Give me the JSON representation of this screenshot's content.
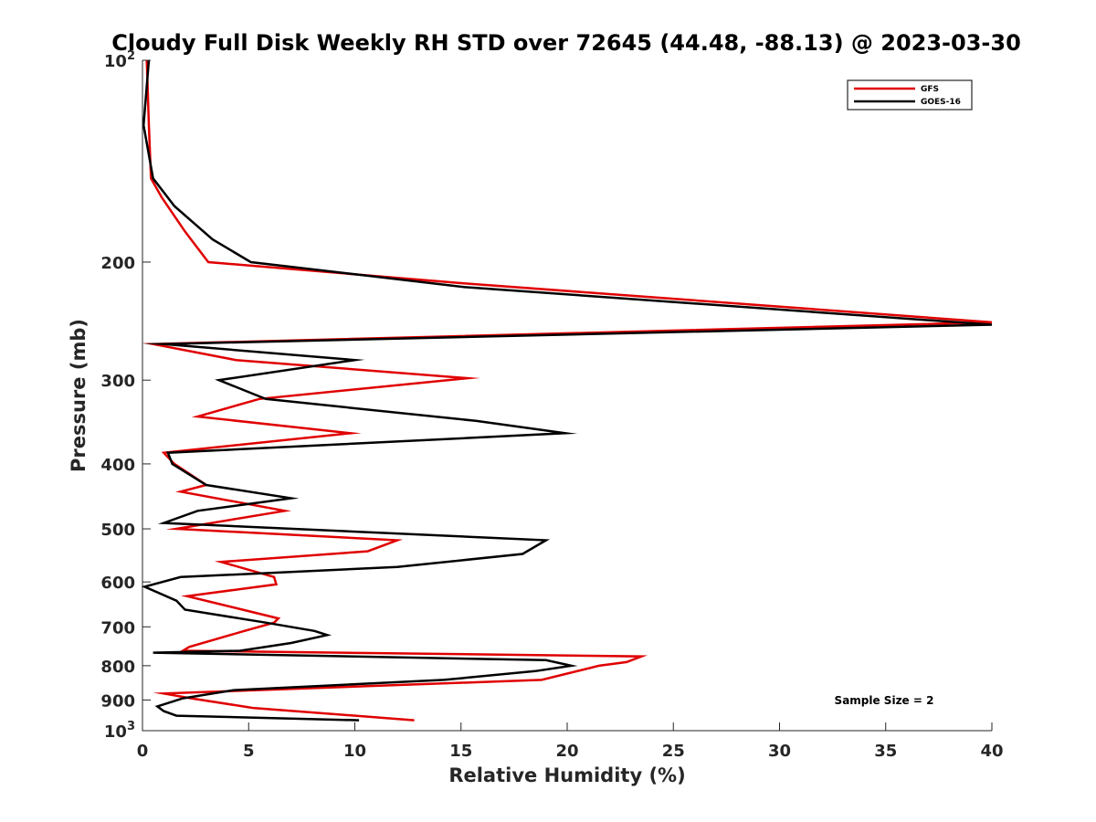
{
  "chart_data": {
    "type": "line",
    "title": "Cloudy Full Disk Weekly RH STD over 72645 (44.48, -88.13) @ 2023-03-30",
    "xlabel": "Relative Humidity (%)",
    "ylabel": "Pressure (mb)",
    "xlim": [
      0,
      40
    ],
    "ylim": [
      100,
      1000
    ],
    "y_scale": "log",
    "y_reversed": true,
    "grid": false,
    "legend_position": "top-right",
    "x_ticks": [
      "0",
      "5",
      "10",
      "15",
      "20",
      "25",
      "30",
      "35",
      "40"
    ],
    "y_ticks": [
      {
        "value": 100,
        "base": "10",
        "exp": "2"
      },
      {
        "value": 200,
        "label": "200"
      },
      {
        "value": 300,
        "label": "300"
      },
      {
        "value": 400,
        "label": "400"
      },
      {
        "value": 500,
        "label": "500"
      },
      {
        "value": 600,
        "label": "600"
      },
      {
        "value": 700,
        "label": "700"
      },
      {
        "value": 800,
        "label": "800"
      },
      {
        "value": 900,
        "label": "900"
      },
      {
        "value": 1000,
        "base": "10",
        "exp": "3"
      }
    ],
    "annotation": "Sample Size = 2",
    "series": [
      {
        "name": "GFS",
        "color": "#e00000",
        "points": [
          [
            0.2,
            100
          ],
          [
            0.3,
            125
          ],
          [
            0.4,
            150
          ],
          [
            0.9,
            160
          ],
          [
            2.0,
            180
          ],
          [
            3.1,
            200
          ],
          [
            15,
            215
          ],
          [
            40,
            246
          ],
          [
            0.5,
            265
          ],
          [
            4.4,
            280
          ],
          [
            15.3,
            298
          ],
          [
            5.5,
            320
          ],
          [
            2.6,
            340
          ],
          [
            9.8,
            360
          ],
          [
            1.0,
            385
          ],
          [
            1.5,
            400
          ],
          [
            3.0,
            430
          ],
          [
            1.8,
            440
          ],
          [
            6.7,
            470
          ],
          [
            1.6,
            500
          ],
          [
            12.0,
            520
          ],
          [
            10.6,
            540
          ],
          [
            3.7,
            560
          ],
          [
            6.2,
            590
          ],
          [
            6.3,
            605
          ],
          [
            2.1,
            630
          ],
          [
            6.4,
            680
          ],
          [
            6.2,
            690
          ],
          [
            4.8,
            710
          ],
          [
            2.2,
            750
          ],
          [
            1.9,
            760
          ],
          [
            23.5,
            775
          ],
          [
            22.8,
            790
          ],
          [
            21.5,
            800
          ],
          [
            18.8,
            840
          ],
          [
            1.0,
            880
          ],
          [
            2.3,
            895
          ],
          [
            5.2,
            925
          ],
          [
            12.8,
            965
          ]
        ]
      },
      {
        "name": "GOES-16",
        "color": "#000000",
        "points": [
          [
            0.3,
            100
          ],
          [
            0.05,
            125
          ],
          [
            0.5,
            150
          ],
          [
            1.5,
            165
          ],
          [
            3.3,
            185
          ],
          [
            5.1,
            200
          ],
          [
            15.2,
            218
          ],
          [
            40,
            248
          ],
          [
            1.0,
            265
          ],
          [
            10,
            280
          ],
          [
            3.6,
            300
          ],
          [
            5.8,
            320
          ],
          [
            15.7,
            345
          ],
          [
            19.9,
            360
          ],
          [
            1.2,
            385
          ],
          [
            1.4,
            400
          ],
          [
            3.0,
            430
          ],
          [
            7.0,
            450
          ],
          [
            2.6,
            470
          ],
          [
            1.0,
            490
          ],
          [
            19.0,
            520
          ],
          [
            17.9,
            545
          ],
          [
            12.0,
            570
          ],
          [
            1.8,
            590
          ],
          [
            0.1,
            610
          ],
          [
            1.6,
            640
          ],
          [
            2.0,
            660
          ],
          [
            5.8,
            690
          ],
          [
            8.1,
            710
          ],
          [
            8.7,
            720
          ],
          [
            7.0,
            740
          ],
          [
            4.6,
            760
          ],
          [
            0.5,
            765
          ],
          [
            19.0,
            785
          ],
          [
            20.2,
            800
          ],
          [
            18.5,
            815
          ],
          [
            14.2,
            840
          ],
          [
            4.3,
            870
          ],
          [
            1.9,
            895
          ],
          [
            0.7,
            920
          ],
          [
            1.0,
            935
          ],
          [
            1.6,
            950
          ],
          [
            10.2,
            965
          ]
        ]
      }
    ]
  }
}
